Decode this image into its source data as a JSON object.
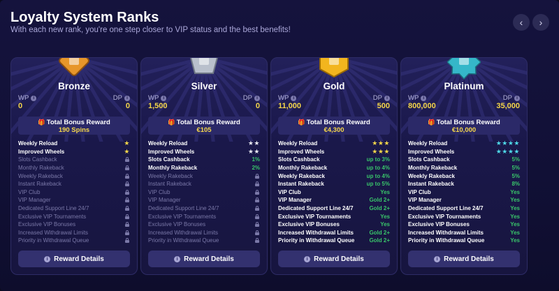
{
  "header": {
    "title": "Loyalty System Ranks",
    "subtitle": "With each new rank, you're one step closer to VIP status and the best benefits!",
    "prev_icon": "chevron-left-icon",
    "next_icon": "chevron-right-icon"
  },
  "labels": {
    "wp": "WP",
    "dp": "DP",
    "total_bonus": "Total Bonus Reward",
    "reward_details": "Reward Details"
  },
  "colors": {
    "bronze": "#e7962a",
    "silver": "#b9c0cc",
    "gold": "#f2b51e",
    "platinum": "#35b7c9",
    "accent_yellow": "#f5d64a",
    "green": "#39c46a",
    "star_cyan": "#4fd9e8"
  },
  "cards": [
    {
      "name": "Bronze",
      "wp": "0",
      "dp": "0",
      "bonus": "190 Spins",
      "features": [
        {
          "label": "Weekly Reload",
          "value": "★",
          "kind": "star",
          "active": true
        },
        {
          "label": "Improved Wheels",
          "value": "★",
          "kind": "star",
          "active": true
        },
        {
          "label": "Slots Cashback",
          "value": "",
          "kind": "lock",
          "active": false
        },
        {
          "label": "Monthly Rakeback",
          "value": "",
          "kind": "lock",
          "active": false
        },
        {
          "label": "Weekly Rakeback",
          "value": "",
          "kind": "lock",
          "active": false
        },
        {
          "label": "Instant Rakeback",
          "value": "",
          "kind": "lock",
          "active": false
        },
        {
          "label": "VIP Club",
          "value": "",
          "kind": "lock",
          "active": false
        },
        {
          "label": "VIP Manager",
          "value": "",
          "kind": "lock",
          "active": false
        },
        {
          "label": "Dedicated Support Line 24/7",
          "value": "",
          "kind": "lock",
          "active": false
        },
        {
          "label": "Exclusive VIP Tournaments",
          "value": "",
          "kind": "lock",
          "active": false
        },
        {
          "label": "Exclusive VIP Bonuses",
          "value": "",
          "kind": "lock",
          "active": false
        },
        {
          "label": "Increased Withdrawal Limits",
          "value": "",
          "kind": "lock",
          "active": false
        },
        {
          "label": "Priority in Withdrawal Queue",
          "value": "",
          "kind": "lock",
          "active": false
        }
      ]
    },
    {
      "name": "Silver",
      "wp": "1,500",
      "dp": "0",
      "bonus": "€105",
      "features": [
        {
          "label": "Weekly Reload",
          "value": "★★",
          "kind": "star",
          "active": true
        },
        {
          "label": "Improved Wheels",
          "value": "★★",
          "kind": "star",
          "active": true
        },
        {
          "label": "Slots Cashback",
          "value": "1%",
          "kind": "text",
          "active": true
        },
        {
          "label": "Monthly Rakeback",
          "value": "2%",
          "kind": "text",
          "active": true
        },
        {
          "label": "Weekly Rakeback",
          "value": "",
          "kind": "lock",
          "active": false
        },
        {
          "label": "Instant Rakeback",
          "value": "",
          "kind": "lock",
          "active": false
        },
        {
          "label": "VIP Club",
          "value": "",
          "kind": "lock",
          "active": false
        },
        {
          "label": "VIP Manager",
          "value": "",
          "kind": "lock",
          "active": false
        },
        {
          "label": "Dedicated Support Line 24/7",
          "value": "",
          "kind": "lock",
          "active": false
        },
        {
          "label": "Exclusive VIP Tournaments",
          "value": "",
          "kind": "lock",
          "active": false
        },
        {
          "label": "Exclusive VIP Bonuses",
          "value": "",
          "kind": "lock",
          "active": false
        },
        {
          "label": "Increased Withdrawal Limits",
          "value": "",
          "kind": "lock",
          "active": false
        },
        {
          "label": "Priority in Withdrawal Queue",
          "value": "",
          "kind": "lock",
          "active": false
        }
      ]
    },
    {
      "name": "Gold",
      "wp": "11,000",
      "dp": "500",
      "bonus": "€4,300",
      "features": [
        {
          "label": "Weekly Reload",
          "value": "★★★",
          "kind": "star",
          "active": true
        },
        {
          "label": "Improved Wheels",
          "value": "★★★",
          "kind": "star",
          "active": true
        },
        {
          "label": "Slots Cashback",
          "value": "up to 3%",
          "kind": "text",
          "active": true
        },
        {
          "label": "Monthly Rakeback",
          "value": "up to 4%",
          "kind": "text",
          "active": true
        },
        {
          "label": "Weekly Rakeback",
          "value": "up to 4%",
          "kind": "text",
          "active": true
        },
        {
          "label": "Instant Rakeback",
          "value": "up to 5%",
          "kind": "text",
          "active": true
        },
        {
          "label": "VIP Club",
          "value": "Yes",
          "kind": "text",
          "active": true
        },
        {
          "label": "VIP Manager",
          "value": "Gold 2+",
          "kind": "text",
          "active": true
        },
        {
          "label": "Dedicated Support Line 24/7",
          "value": "Gold 2+",
          "kind": "text",
          "active": true
        },
        {
          "label": "Exclusive VIP Tournaments",
          "value": "Yes",
          "kind": "text",
          "active": true
        },
        {
          "label": "Exclusive VIP Bonuses",
          "value": "Yes",
          "kind": "text",
          "active": true
        },
        {
          "label": "Increased Withdrawal Limits",
          "value": "Gold 2+",
          "kind": "text",
          "active": true
        },
        {
          "label": "Priority in Withdrawal Queue",
          "value": "Gold 2+",
          "kind": "text",
          "active": true
        }
      ]
    },
    {
      "name": "Platinum",
      "wp": "800,000",
      "dp": "35,000",
      "bonus": "€10,000",
      "features": [
        {
          "label": "Weekly Reload",
          "value": "★★★★",
          "kind": "star",
          "active": true
        },
        {
          "label": "Improved Wheels",
          "value": "★★★★",
          "kind": "star",
          "active": true
        },
        {
          "label": "Slots Cashback",
          "value": "5%",
          "kind": "text",
          "active": true
        },
        {
          "label": "Monthly Rakeback",
          "value": "5%",
          "kind": "text",
          "active": true
        },
        {
          "label": "Weekly Rakeback",
          "value": "5%",
          "kind": "text",
          "active": true
        },
        {
          "label": "Instant Rakeback",
          "value": "8%",
          "kind": "text",
          "active": true
        },
        {
          "label": "VIP Club",
          "value": "Yes",
          "kind": "text",
          "active": true
        },
        {
          "label": "VIP Manager",
          "value": "Yes",
          "kind": "text",
          "active": true
        },
        {
          "label": "Dedicated Support Line 24/7",
          "value": "Yes",
          "kind": "text",
          "active": true
        },
        {
          "label": "Exclusive VIP Tournaments",
          "value": "Yes",
          "kind": "text",
          "active": true
        },
        {
          "label": "Exclusive VIP Bonuses",
          "value": "Yes",
          "kind": "text",
          "active": true
        },
        {
          "label": "Increased Withdrawal Limits",
          "value": "Yes",
          "kind": "text",
          "active": true
        },
        {
          "label": "Priority in Withdrawal Queue",
          "value": "Yes",
          "kind": "text",
          "active": true
        }
      ]
    }
  ]
}
